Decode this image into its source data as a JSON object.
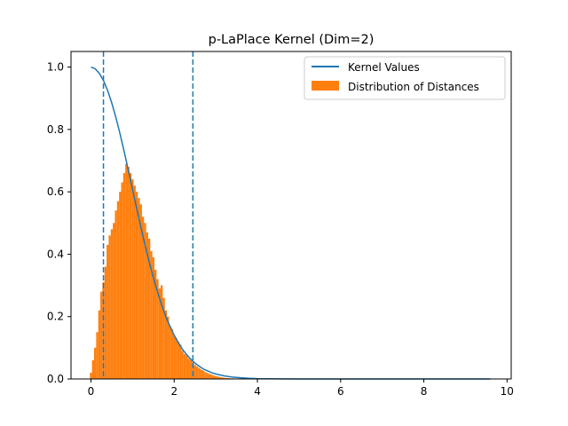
{
  "chart_data": {
    "type": "bar",
    "title": "p-LaPlace Kernel (Dim=2)",
    "xlabel": "",
    "ylabel": "",
    "xlim": [
      -0.48,
      10.1
    ],
    "ylim": [
      0,
      1.05
    ],
    "xticks": [
      0,
      2,
      4,
      6,
      8,
      10
    ],
    "yticks": [
      0.0,
      0.2,
      0.4,
      0.6,
      0.8,
      1.0
    ],
    "xtick_labels": [
      "0",
      "2",
      "4",
      "6",
      "8",
      "10"
    ],
    "ytick_labels": [
      "0.0",
      "0.2",
      "0.4",
      "0.6",
      "0.8",
      "1.0"
    ],
    "grid": false,
    "legend_position": "top-right",
    "series": [
      {
        "name": "Kernel Values",
        "type": "line",
        "color": "#1f77b4",
        "x": [
          0.0,
          0.1,
          0.2,
          0.3,
          0.4,
          0.5,
          0.6,
          0.7,
          0.8,
          0.9,
          1.0,
          1.1,
          1.2,
          1.3,
          1.4,
          1.5,
          1.6,
          1.7,
          1.8,
          1.9,
          2.0,
          2.1,
          2.2,
          2.3,
          2.4,
          2.5,
          2.6,
          2.7,
          2.8,
          2.9,
          3.0,
          3.2,
          3.4,
          3.6,
          3.8,
          4.0,
          4.5,
          5.0,
          6.0,
          7.0,
          8.0,
          9.0,
          9.6
        ],
        "y": [
          1.0,
          0.995,
          0.98,
          0.957,
          0.925,
          0.885,
          0.838,
          0.785,
          0.728,
          0.668,
          0.607,
          0.546,
          0.486,
          0.429,
          0.375,
          0.325,
          0.279,
          0.237,
          0.2,
          0.168,
          0.14,
          0.116,
          0.095,
          0.078,
          0.063,
          0.051,
          0.041,
          0.032,
          0.026,
          0.02,
          0.016,
          0.01,
          0.006,
          0.004,
          0.002,
          0.001,
          0.0004,
          0.0001,
          0.0,
          0.0,
          0.0,
          0.0,
          0.0
        ]
      },
      {
        "name": "Distribution of Distances",
        "type": "histogram",
        "color": "#ff7f0e",
        "bin_centers": [
          0.0,
          0.05,
          0.1,
          0.15,
          0.2,
          0.25,
          0.3,
          0.35,
          0.4,
          0.45,
          0.5,
          0.55,
          0.6,
          0.65,
          0.7,
          0.75,
          0.8,
          0.85,
          0.9,
          0.95,
          1.0,
          1.05,
          1.1,
          1.15,
          1.2,
          1.25,
          1.3,
          1.35,
          1.4,
          1.45,
          1.5,
          1.55,
          1.6,
          1.65,
          1.7,
          1.75,
          1.8,
          1.85,
          1.9,
          1.95,
          2.0,
          2.05,
          2.1,
          2.15,
          2.2,
          2.25,
          2.3,
          2.35,
          2.4,
          2.45,
          2.5,
          2.55,
          2.6,
          2.65,
          2.7,
          2.75,
          2.8,
          2.85,
          2.9,
          2.95,
          3.0,
          3.05,
          3.1,
          3.15,
          3.2,
          3.25,
          3.3,
          3.35,
          3.4,
          3.45,
          3.5,
          3.55,
          3.6,
          3.65,
          3.7,
          3.75,
          3.8,
          3.85,
          3.9,
          3.95,
          4.0
        ],
        "values": [
          0.02,
          0.06,
          0.1,
          0.15,
          0.22,
          0.28,
          0.31,
          0.36,
          0.43,
          0.46,
          0.48,
          0.5,
          0.54,
          0.57,
          0.6,
          0.63,
          0.66,
          0.69,
          0.68,
          0.66,
          0.64,
          0.62,
          0.6,
          0.58,
          0.56,
          0.52,
          0.5,
          0.47,
          0.45,
          0.41,
          0.39,
          0.35,
          0.32,
          0.29,
          0.3,
          0.26,
          0.22,
          0.2,
          0.17,
          0.16,
          0.14,
          0.13,
          0.12,
          0.11,
          0.09,
          0.08,
          0.075,
          0.065,
          0.06,
          0.055,
          0.045,
          0.04,
          0.035,
          0.03,
          0.027,
          0.022,
          0.019,
          0.016,
          0.014,
          0.011,
          0.009,
          0.008,
          0.006,
          0.005,
          0.004,
          0.003,
          0.003,
          0.002,
          0.002,
          0.0015,
          0.001,
          0.001,
          0.0008,
          0.0005,
          0.0004,
          0.0003,
          0.0002,
          0.0002,
          0.0001,
          0.0001,
          0.0001
        ]
      }
    ],
    "vlines": [
      {
        "x": 0.3,
        "style": "dashed",
        "color": "#1f77b4"
      },
      {
        "x": 2.45,
        "style": "dashed",
        "color": "#1f77b4"
      }
    ]
  }
}
